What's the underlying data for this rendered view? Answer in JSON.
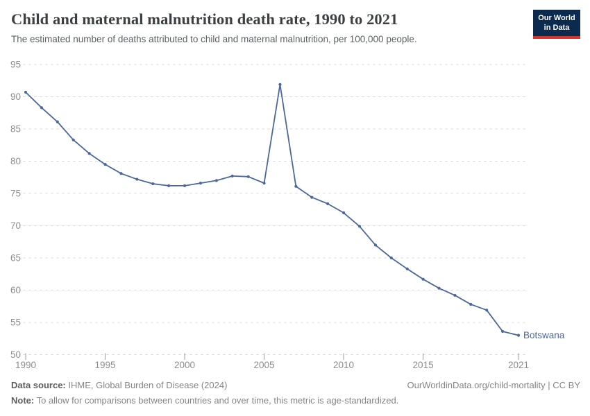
{
  "header": {
    "title": "Child and maternal malnutrition death rate, 1990 to 2021",
    "subtitle": "The estimated number of deaths attributed to child and maternal malnutrition, per 100,000 people.",
    "logo": {
      "line1": "Our World",
      "line2": "in Data",
      "bg_color": "#0c2a4e",
      "accent_color": "#d7352b"
    }
  },
  "chart_data": {
    "type": "line",
    "title": "Child and maternal malnutrition death rate, 1990 to 2021",
    "subtitle": "The estimated number of deaths attributed to child and maternal malnutrition, per 100,000 people.",
    "xlabel": "",
    "ylabel": "",
    "xlim": [
      1990,
      2021
    ],
    "ylim": [
      50,
      95
    ],
    "x_ticks": [
      1990,
      1995,
      2000,
      2005,
      2010,
      2015,
      2021
    ],
    "y_ticks": [
      50,
      55,
      60,
      65,
      70,
      75,
      80,
      85,
      90,
      95
    ],
    "grid": "horizontal-dashed",
    "legend_position": "end-of-line",
    "end_label": "Botswana",
    "series": [
      {
        "name": "Botswana",
        "color": "#4c679b",
        "x": [
          1990,
          1991,
          1992,
          1993,
          1994,
          1995,
          1996,
          1997,
          1998,
          1999,
          2000,
          2001,
          2002,
          2003,
          2004,
          2005,
          2006,
          2007,
          2008,
          2009,
          2010,
          2011,
          2012,
          2013,
          2014,
          2015,
          2016,
          2017,
          2018,
          2019,
          2020,
          2021
        ],
        "values": [
          90.7,
          88.3,
          86.1,
          83.3,
          81.2,
          79.5,
          78.1,
          77.2,
          76.5,
          76.2,
          76.2,
          76.6,
          77.0,
          77.7,
          77.6,
          76.6,
          91.9,
          76.1,
          74.4,
          73.4,
          72.0,
          69.9,
          67.0,
          65.0,
          63.3,
          61.7,
          60.3,
          59.2,
          57.8,
          56.9,
          53.6,
          53.0
        ]
      }
    ]
  },
  "footer": {
    "source_label": "Data source:",
    "source_text": " IHME, Global Burden of Disease (2024)",
    "link_text": "OurWorldinData.org/child-mortality | CC BY",
    "note_label": "Note:",
    "note_text": " To allow for comparisons between countries and over time, this metric is age-standardized."
  }
}
